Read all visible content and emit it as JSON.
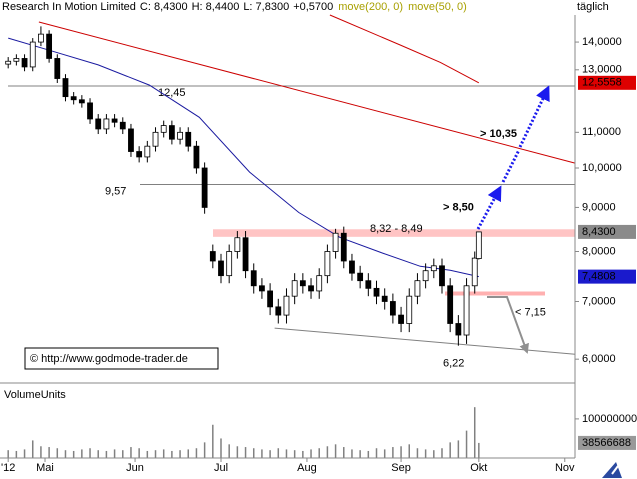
{
  "chart_data": [
    {
      "type": "candlestick",
      "title": "Research In Motion Limited",
      "header_values": [
        {
          "value": 8.43,
          "label": "C: 8,4300"
        },
        {
          "value": 8.44,
          "label": "H: 8,4400"
        },
        {
          "value": 7.83,
          "label": "L: 7,8300"
        },
        {
          "value": 0.57,
          "label": "+0,5700"
        }
      ],
      "period": "täglich",
      "copyright": "© http://www.godmode-trader.de",
      "log": true,
      "xlim": [
        -11,
        129.5
      ],
      "ylim": [
        5.63,
        15.05
      ],
      "yticks": [
        {
          "value": 14,
          "label": "14,0000"
        },
        {
          "value": 13,
          "label": "13,0000"
        },
        {
          "value": 11,
          "label": "11,0000"
        },
        {
          "value": 10,
          "label": "10,0000"
        },
        {
          "value": 9,
          "label": "9,0000"
        },
        {
          "value": 8,
          "label": "8,0000"
        },
        {
          "value": 7,
          "label": "7,0000"
        },
        {
          "value": 6,
          "label": "6,0000"
        }
      ],
      "x": [
        -9,
        -7,
        -5,
        -3,
        -1,
        1,
        3,
        5,
        7,
        9,
        11,
        13,
        15,
        17,
        19,
        21,
        23,
        25,
        27,
        29,
        31,
        33,
        35,
        37,
        39,
        41,
        43,
        45,
        47,
        49,
        51,
        53,
        55,
        57,
        59,
        61,
        63,
        65,
        67,
        69,
        71,
        73,
        75,
        77,
        79,
        81,
        83,
        85,
        87,
        89,
        91,
        93,
        95,
        97,
        99,
        101,
        103,
        105,
        106
      ],
      "open": [
        13.2,
        13.3,
        13.4,
        13.1,
        14.0,
        14.3,
        13.4,
        12.7,
        12.1,
        12.0,
        11.9,
        11.4,
        11.1,
        11.4,
        11.3,
        11.1,
        10.45,
        10.3,
        10.6,
        11.0,
        11.2,
        10.8,
        11.0,
        10.6,
        10.0,
        8.0,
        7.8,
        7.5,
        8.0,
        8.3,
        7.6,
        7.3,
        7.2,
        6.9,
        6.75,
        7.1,
        7.4,
        7.3,
        7.2,
        7.5,
        8.0,
        8.4,
        7.8,
        7.55,
        7.4,
        7.25,
        7.1,
        7.0,
        6.75,
        6.6,
        7.1,
        7.4,
        7.6,
        7.7,
        7.3,
        6.6,
        6.4,
        7.3,
        7.85
      ],
      "high": [
        13.45,
        13.55,
        13.55,
        14.15,
        14.6,
        14.45,
        13.55,
        12.85,
        12.25,
        12.15,
        12.05,
        11.55,
        11.55,
        11.55,
        11.45,
        11.25,
        10.6,
        10.75,
        11.15,
        11.35,
        11.35,
        11.15,
        11.15,
        10.75,
        10.15,
        8.15,
        7.95,
        8.15,
        8.45,
        8.45,
        7.75,
        7.45,
        7.35,
        7.05,
        7.25,
        7.55,
        7.55,
        7.45,
        7.65,
        8.15,
        8.5,
        8.55,
        7.95,
        7.7,
        7.55,
        7.4,
        7.25,
        7.15,
        6.9,
        7.25,
        7.55,
        7.75,
        7.85,
        7.85,
        7.45,
        6.75,
        7.45,
        8.0,
        8.44
      ],
      "low": [
        13.05,
        13.15,
        12.95,
        12.95,
        13.85,
        13.25,
        12.55,
        11.95,
        11.85,
        11.75,
        11.25,
        10.95,
        10.95,
        11.15,
        10.95,
        10.3,
        10.15,
        10.15,
        10.45,
        10.85,
        10.65,
        10.65,
        10.45,
        9.85,
        8.85,
        7.65,
        7.35,
        7.35,
        7.85,
        7.45,
        7.15,
        7.05,
        6.75,
        6.6,
        6.6,
        6.95,
        7.15,
        7.05,
        7.05,
        7.35,
        7.85,
        7.65,
        7.4,
        7.25,
        7.1,
        6.95,
        6.85,
        6.6,
        6.45,
        6.45,
        6.95,
        7.25,
        7.45,
        7.15,
        6.45,
        6.22,
        6.25,
        7.15,
        7.83
      ],
      "close": [
        13.3,
        13.4,
        13.1,
        14.0,
        14.3,
        13.4,
        12.7,
        12.1,
        12.0,
        11.9,
        11.4,
        11.1,
        11.4,
        11.3,
        11.1,
        10.45,
        10.3,
        10.6,
        11.0,
        11.2,
        10.8,
        11.0,
        10.6,
        10.0,
        9.0,
        7.8,
        7.5,
        8.0,
        8.3,
        7.6,
        7.3,
        7.2,
        6.9,
        6.75,
        7.1,
        7.4,
        7.3,
        7.2,
        7.5,
        8.0,
        8.4,
        7.8,
        7.55,
        7.4,
        7.25,
        7.1,
        7.0,
        6.75,
        6.6,
        7.1,
        7.4,
        7.6,
        7.7,
        7.3,
        6.6,
        6.4,
        7.3,
        7.86,
        8.43
      ],
      "series": [
        {
          "name": "move(200, 0)",
          "color": "#cc0000",
          "x": [
            69.6,
            86.8,
            96.6,
            106
          ],
          "values": [
            15.05,
            13.89,
            13.26,
            12.5558
          ]
        },
        {
          "name": "move(50, 0)",
          "color": "#1a1aa0",
          "x": [
            -9,
            1,
            13,
            25.5,
            37.7,
            50,
            62,
            72,
            82,
            91.7,
            99,
            106
          ],
          "values": [
            14.15,
            13.7,
            13.17,
            12.48,
            11.45,
            9.89,
            8.88,
            8.31,
            7.98,
            7.69,
            7.61,
            7.4808
          ]
        }
      ],
      "legend_color": "#a8a000",
      "trendlines": [
        {
          "color": "#cc0000",
          "x": [
            -1.5,
            129.5
          ],
          "values": [
            14.77,
            10.13
          ]
        },
        {
          "color": "#808080",
          "x": [
            56.1,
            129.5
          ],
          "values": [
            6.52,
            6.08
          ]
        }
      ],
      "hlines": [
        {
          "value": 12.45,
          "label": "12,45"
        },
        {
          "value": 9.57,
          "label": "9,57"
        }
      ],
      "zone": {
        "from": 8.32,
        "to": 8.49,
        "label": "8,32 - 8,49"
      },
      "support": {
        "value": 7.15,
        "label": "< 7,15"
      },
      "low_mark": {
        "value": 6.22,
        "label": "6,22"
      },
      "targets": [
        {
          "value": 8.5,
          "label": "> 8,50"
        },
        {
          "value": 10.35,
          "label": "> 10,35"
        }
      ],
      "price_tags": [
        {
          "value": 12.5558,
          "label": "12,5558",
          "color": "#dd0000"
        },
        {
          "value": 8.43,
          "label": "8,4300",
          "color": "#8a8a8a"
        },
        {
          "value": 7.4808,
          "label": "7,4808",
          "color": "#1a1acc"
        }
      ]
    },
    {
      "type": "bar",
      "title": "VolumeUnits",
      "color": "#808080",
      "xlim": [
        -11,
        129.5
      ],
      "xticks": [
        {
          "value": -9,
          "label": "'12"
        },
        {
          "value": 0,
          "label": "Mai"
        },
        {
          "value": 22,
          "label": "Jun"
        },
        {
          "value": 43,
          "label": "Jul"
        },
        {
          "value": 64,
          "label": "Aug"
        },
        {
          "value": 87,
          "label": "Sep"
        },
        {
          "value": 106,
          "label": "Okt"
        },
        {
          "value": 127,
          "label": "Nov"
        }
      ],
      "ylim": [
        0,
        179000000
      ],
      "yticks": [
        100000000
      ],
      "last_value": 38566688,
      "x": [
        -9,
        -7,
        -5,
        -3,
        -1,
        1,
        3,
        5,
        7,
        9,
        11,
        13,
        15,
        17,
        19,
        21,
        23,
        25,
        27,
        29,
        31,
        33,
        35,
        37,
        39,
        41,
        43,
        45,
        47,
        49,
        51,
        53,
        55,
        57,
        59,
        61,
        63,
        65,
        67,
        69,
        71,
        73,
        75,
        77,
        79,
        81,
        83,
        85,
        87,
        89,
        91,
        93,
        95,
        97,
        99,
        101,
        103,
        105,
        106
      ],
      "values": [
        20000000,
        18000000,
        22000000,
        45000000,
        30000000,
        28000000,
        25000000,
        20000000,
        18000000,
        22000000,
        25000000,
        20000000,
        18000000,
        22000000,
        20000000,
        28000000,
        25000000,
        18000000,
        20000000,
        22000000,
        18000000,
        20000000,
        22000000,
        25000000,
        40000000,
        85000000,
        50000000,
        35000000,
        30000000,
        28000000,
        25000000,
        22000000,
        20000000,
        25000000,
        22000000,
        20000000,
        18000000,
        22000000,
        25000000,
        30000000,
        35000000,
        28000000,
        22000000,
        20000000,
        18000000,
        25000000,
        22000000,
        28000000,
        30000000,
        35000000,
        25000000,
        22000000,
        20000000,
        25000000,
        40000000,
        45000000,
        70000000,
        130000000,
        38566688
      ]
    }
  ]
}
